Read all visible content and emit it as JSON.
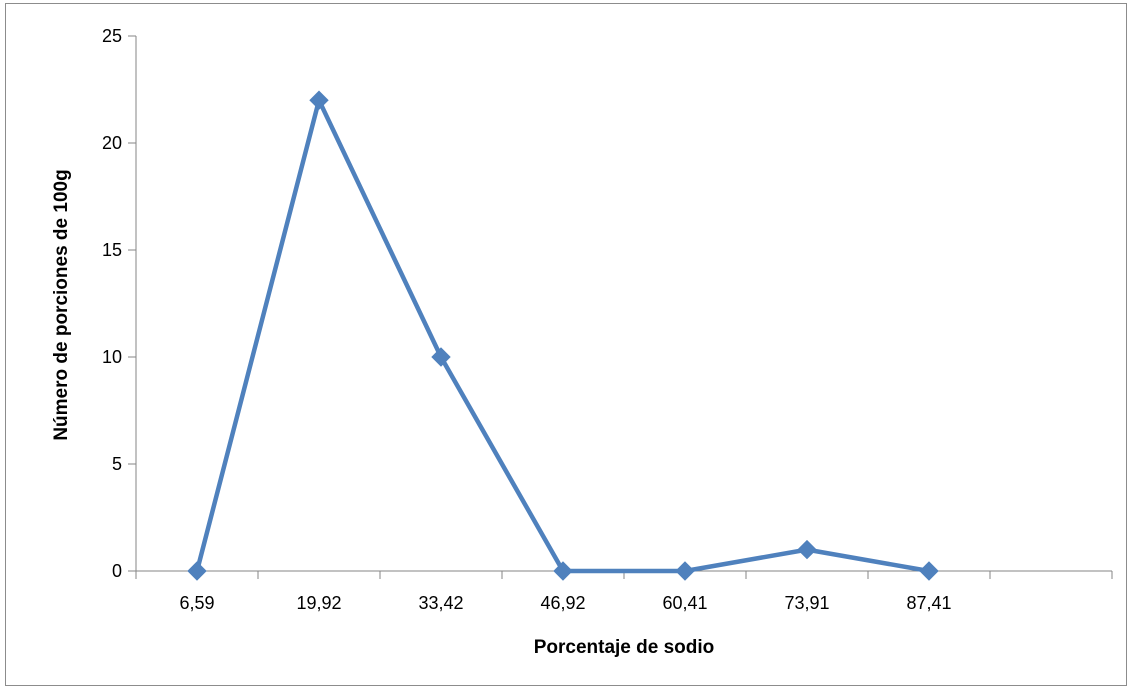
{
  "chart_data": {
    "type": "line",
    "title": "",
    "xlabel": "Porcentaje de sodio",
    "ylabel": "Número de porciones de 100g",
    "categories": [
      "6,59",
      "19,92",
      "33,42",
      "46,92",
      "60,41",
      "73,91",
      "87,41"
    ],
    "series": [
      {
        "values": [
          0,
          22,
          10,
          0,
          0,
          1,
          0
        ]
      }
    ],
    "ylim": [
      0,
      25
    ],
    "yticks": [
      "0",
      "5",
      "10",
      "15",
      "20",
      "25"
    ],
    "grid": false,
    "legend": "none",
    "line_color": "#4f81bd",
    "axis_color": "#868686"
  }
}
